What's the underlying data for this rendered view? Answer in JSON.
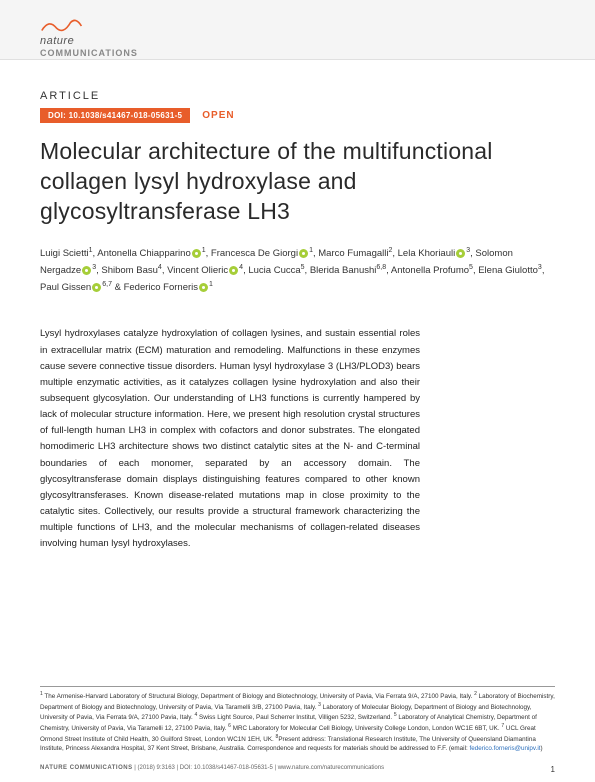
{
  "header": {
    "brand_line1": "nature",
    "brand_line2": "COMMUNICATIONS",
    "squiggle_color": "#e85d2a"
  },
  "article_label": "ARTICLE",
  "doi_badge": "DOI: 10.1038/s41467-018-05631-5",
  "open_label": "OPEN",
  "title": "Molecular architecture of the multifunctional collagen lysyl hydroxylase and glycosyltransferase LH3",
  "authors_html": "Luigi Scietti<sup>1</sup>, Antonella Chiapparino<span class='orcid'></span><sup>1</sup>, Francesca De Giorgi<span class='orcid'></span><sup>1</sup>, Marco Fumagalli<sup>2</sup>, Lela Khoriauli<span class='orcid'></span><sup>3</sup>, Solomon Nergadze<span class='orcid'></span><sup>3</sup>, Shibom Basu<sup>4</sup>, Vincent Olieric<span class='orcid'></span><sup>4</sup>, Lucia Cucca<sup>5</sup>, Blerida Banushi<sup>6,8</sup>, Antonella Profumo<sup>5</sup>, Elena Giulotto<sup>3</sup>, Paul Gissen<span class='orcid'></span><sup>6,7</sup> &amp; Federico Forneris<span class='orcid'></span><sup>1</sup>",
  "abstract": "Lysyl hydroxylases catalyze hydroxylation of collagen lysines, and sustain essential roles in extracellular matrix (ECM) maturation and remodeling. Malfunctions in these enzymes cause severe connective tissue disorders. Human lysyl hydroxylase 3 (LH3/PLOD3) bears multiple enzymatic activities, as it catalyzes collagen lysine hydroxylation and also their subsequent glycosylation. Our understanding of LH3 functions is currently hampered by lack of molecular structure information. Here, we present high resolution crystal structures of full-length human LH3 in complex with cofactors and donor substrates. The elongated homodimeric LH3 architecture shows two distinct catalytic sites at the N- and C-terminal boundaries of each monomer, separated by an accessory domain. The glycosyltransferase domain displays distinguishing features compared to other known glycosyltransferases. Known disease-related mutations map in close proximity to the catalytic sites. Collectively, our results provide a structural framework characterizing the multiple functions of LH3, and the molecular mechanisms of collagen-related diseases involving human lysyl hydroxylases.",
  "affiliations_html": "<sup>1</sup> The Armenise-Harvard Laboratory of Structural Biology, Department of Biology and Biotechnology, University of Pavia, Via Ferrata 9/A, 27100 Pavia, Italy. <sup>2</sup> Laboratory of Biochemistry, Department of Biology and Biotechnology, University of Pavia, Via Taramelli 3/B, 27100 Pavia, Italy. <sup>3</sup> Laboratory of Molecular Biology, Department of Biology and Biotechnology, University of Pavia, Via Ferrata 9/A, 27100 Pavia, Italy. <sup>4</sup> Swiss Light Source, Paul Scherrer Institut, Villigen 5232, Switzerland. <sup>5</sup> Laboratory of Analytical Chemistry, Department of Chemistry, University of Pavia, Via Taramelli 12, 27100 Pavia, Italy. <sup>6</sup> MRC Laboratory for Molecular Cell Biology, University College London, London WC1E 6BT, UK. <sup>7</sup> UCL Great Ormond Street Institute of Child Health, 30 Guilford Street, London WC1N 1EH, UK. <sup>8</sup>Present address: Translational Research Institute, The University of Queensland Diamantina Institute, Princess Alexandra Hospital, 37 Kent Street, Brisbane, Australia. Correspondence and requests for materials should be addressed to F.F. (email: <span class='email'>federico.forneris@unipv.it</span>)",
  "footer": {
    "journal": "NATURE COMMUNICATIONS",
    "citation": "| (2018) 9:3163 | DOI: 10.1038/s41467-018-05631-5 | www.nature.com/naturecommunications",
    "page": "1"
  },
  "colors": {
    "accent": "#e85d2a",
    "orcid": "#a6ce39",
    "link": "#2a6ebb",
    "header_bg": "#f5f5f5"
  }
}
